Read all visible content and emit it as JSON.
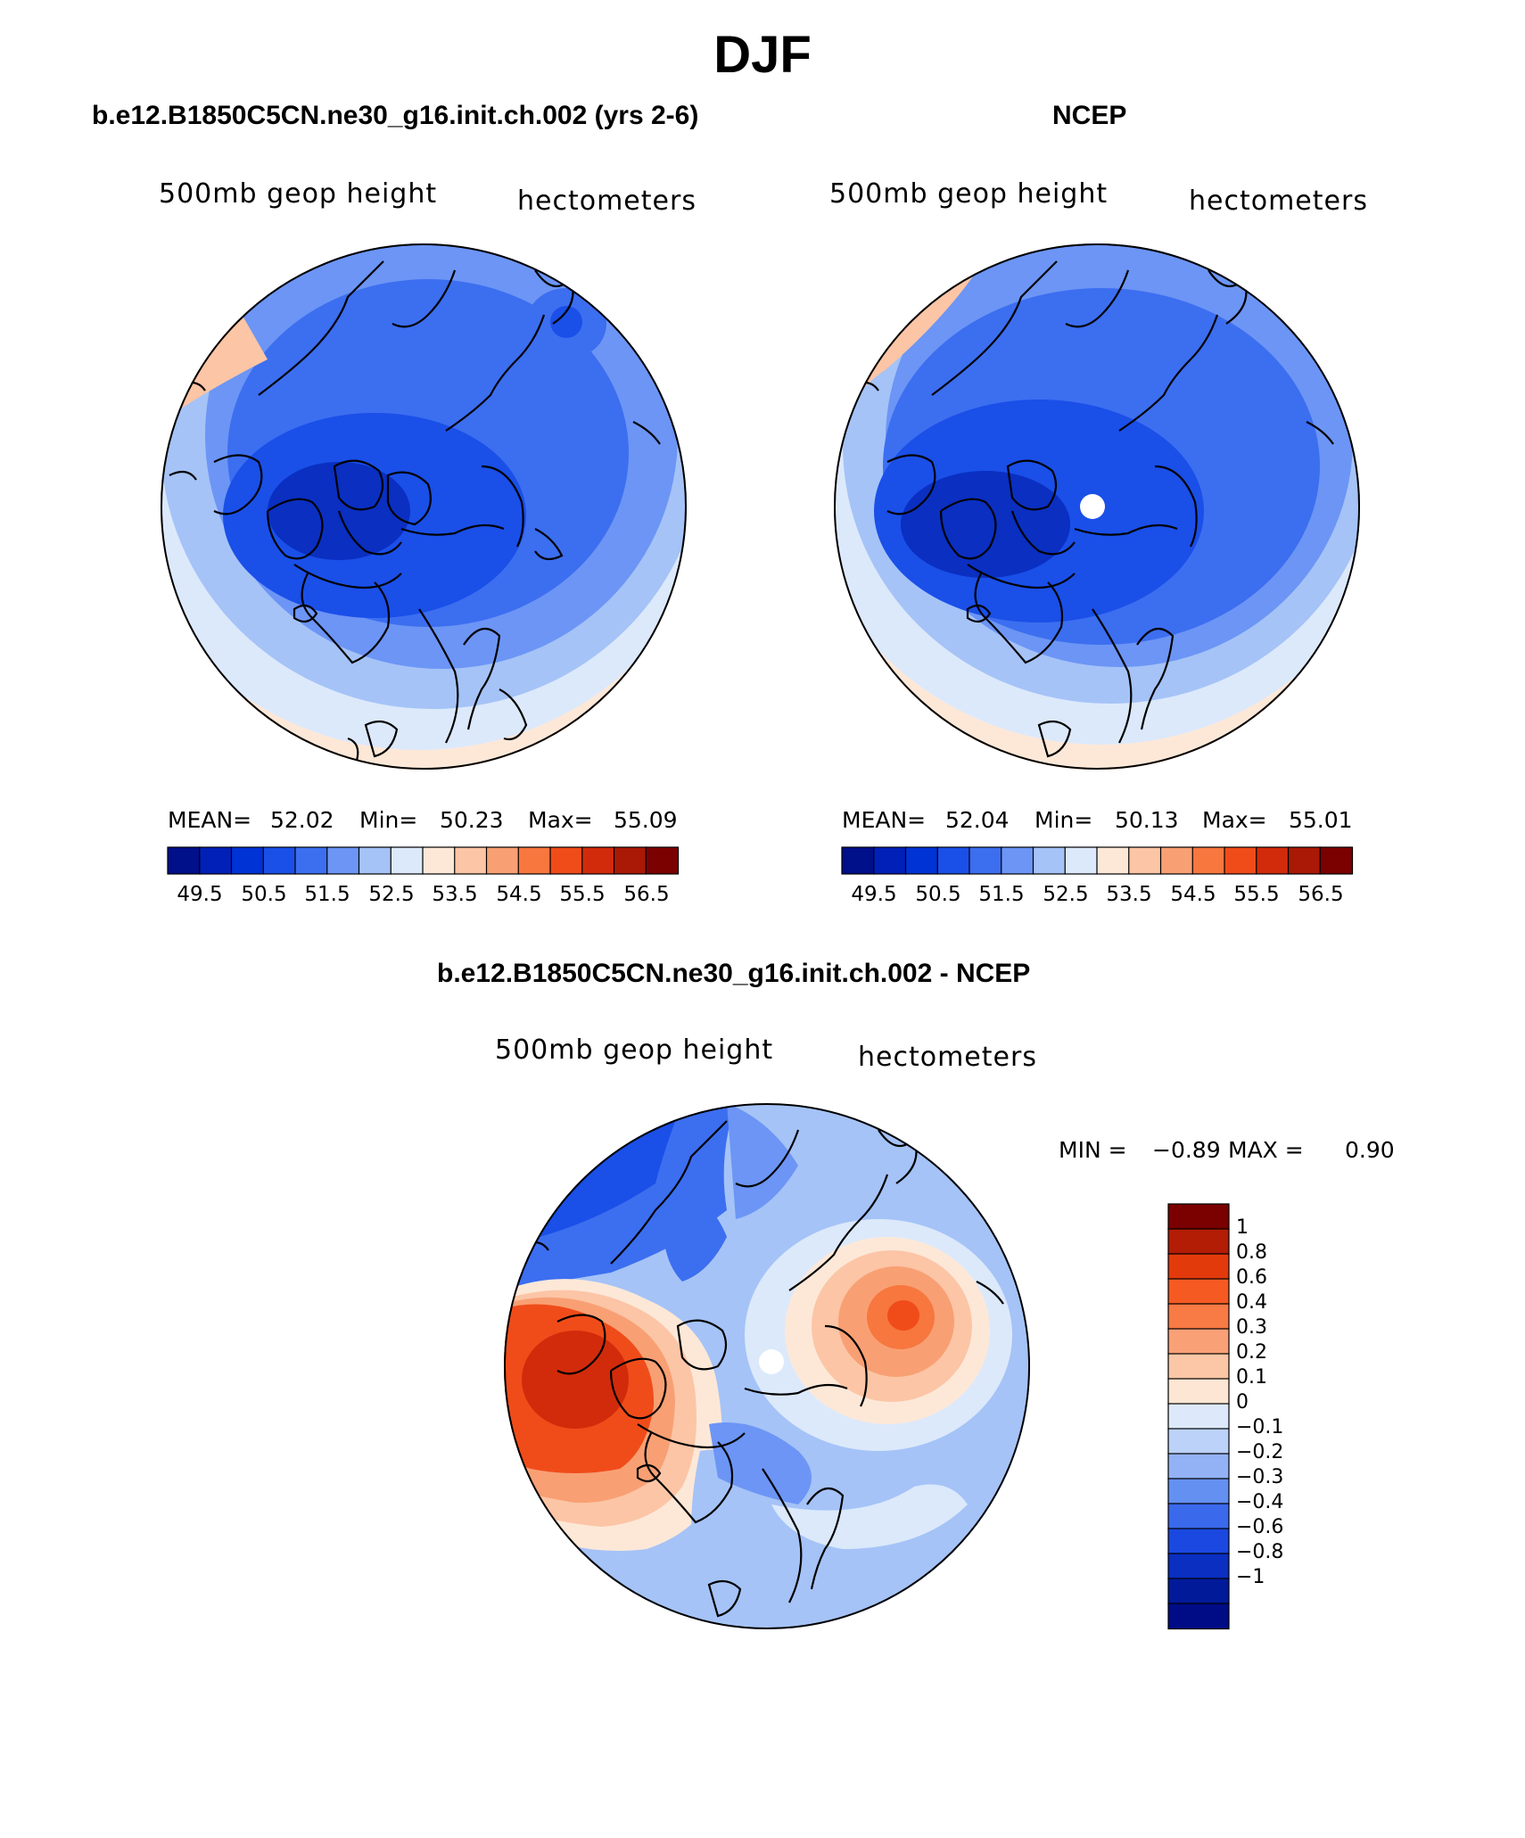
{
  "title": "DJF",
  "panels": {
    "model": {
      "header": "b.e12.B1850C5CN.ne30_g16.init.ch.002 (yrs 2-6)",
      "variable": "500mb geop height",
      "units": "hectometers",
      "stats": {
        "mean_label": "MEAN=",
        "mean": "52.02",
        "min_label": "Min=",
        "min": "50.23",
        "max_label": "Max=",
        "max": "55.09"
      }
    },
    "obs": {
      "header": "NCEP",
      "variable": "500mb geop height",
      "units": "hectometers",
      "stats": {
        "mean_label": "MEAN=",
        "mean": "52.04",
        "min_label": "Min=",
        "min": "50.13",
        "max_label": "Max=",
        "max": "55.01"
      }
    },
    "diff": {
      "header": "b.e12.B1850C5CN.ne30_g16.init.ch.002 - NCEP",
      "variable": "500mb geop height",
      "units": "hectometers",
      "stats": {
        "min_label": "MIN =",
        "min": "−0.89",
        "max_label": "MAX =",
        "max": "0.90"
      }
    }
  },
  "colorbar_abs": {
    "colors": [
      "#000f8a",
      "#0020b8",
      "#0033d6",
      "#1a4fe8",
      "#3c6ef0",
      "#6c95f5",
      "#a5c3f7",
      "#dce9fb",
      "#fde8d8",
      "#fcc5a6",
      "#f8a074",
      "#f7773f",
      "#f04c1a",
      "#d22b0b",
      "#a91905",
      "#7b0000"
    ],
    "tick_labels": [
      "49.5",
      "50.5",
      "51.5",
      "52.5",
      "53.5",
      "54.5",
      "55.5",
      "56.5"
    ]
  },
  "colorbar_diff": {
    "colors": [
      "#7b0000",
      "#b31c05",
      "#e33a0c",
      "#f55a22",
      "#f87a45",
      "#f9a077",
      "#fbc7a6",
      "#fde6d3",
      "#dde9fb",
      "#bcd2f8",
      "#93b2f6",
      "#6490f1",
      "#3b69ec",
      "#1a48e0",
      "#0a2fc1",
      "#001a9a",
      "#000c86"
    ],
    "labels": [
      "1",
      "0.8",
      "0.6",
      "0.4",
      "0.3",
      "0.2",
      "0.1",
      "0",
      "−0.1",
      "−0.2",
      "−0.3",
      "−0.4",
      "−0.6",
      "−0.8",
      "−1"
    ]
  },
  "map_colors": {
    "deep_blue": "#1a4fe8",
    "mid_blue": "#3c6ef0",
    "light_blue": "#6c95f5",
    "pale_blue": "#a5c3f7",
    "paler_blue": "#dce9fb",
    "cream": "#fde8d8",
    "peach": "#fcc5a6",
    "orange": "#f8a074",
    "red_orange": "#f04c1a",
    "dark_red": "#b31c05",
    "navy": "#0a2fc1"
  }
}
